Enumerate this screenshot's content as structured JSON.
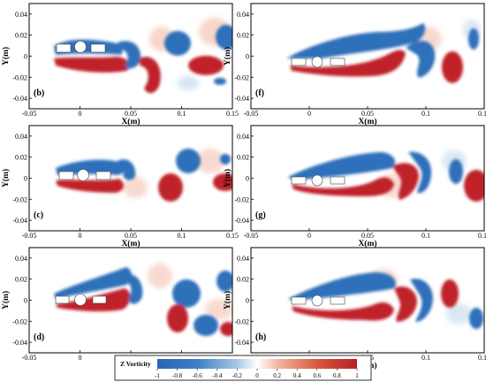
{
  "figure": {
    "panels": [
      {
        "id": "b",
        "label": "(b)"
      },
      {
        "id": "c",
        "label": "(c)"
      },
      {
        "id": "d",
        "label": "(d)"
      },
      {
        "id": "f",
        "label": "(f)"
      },
      {
        "id": "g",
        "label": "(g)"
      },
      {
        "id": "h",
        "label": "(h)"
      }
    ],
    "x_axis": {
      "label": "X(m)",
      "ticks": [
        "-0.05",
        "0",
        "0.05",
        "0.1",
        "0.15"
      ],
      "range": [
        -0.05,
        0.15
      ]
    },
    "y_axis": {
      "label": "Y(m)",
      "ticks": [
        "0.04",
        "0.02",
        "0",
        "-0.02",
        "-0.04"
      ],
      "range": [
        -0.05,
        0.05
      ]
    },
    "colorbar": {
      "title": "Z Vorticity",
      "ticks": [
        "-1",
        "-0.8",
        "-0.6",
        "-0.4",
        "-0.2",
        "0",
        "0.2",
        "0.4",
        "0.6",
        "0.8",
        "1"
      ],
      "range": [
        -1,
        1
      ],
      "colors": {
        "negative": "#2f6fba",
        "zero": "#ffffff",
        "positive": "#c0242b"
      }
    }
  }
}
